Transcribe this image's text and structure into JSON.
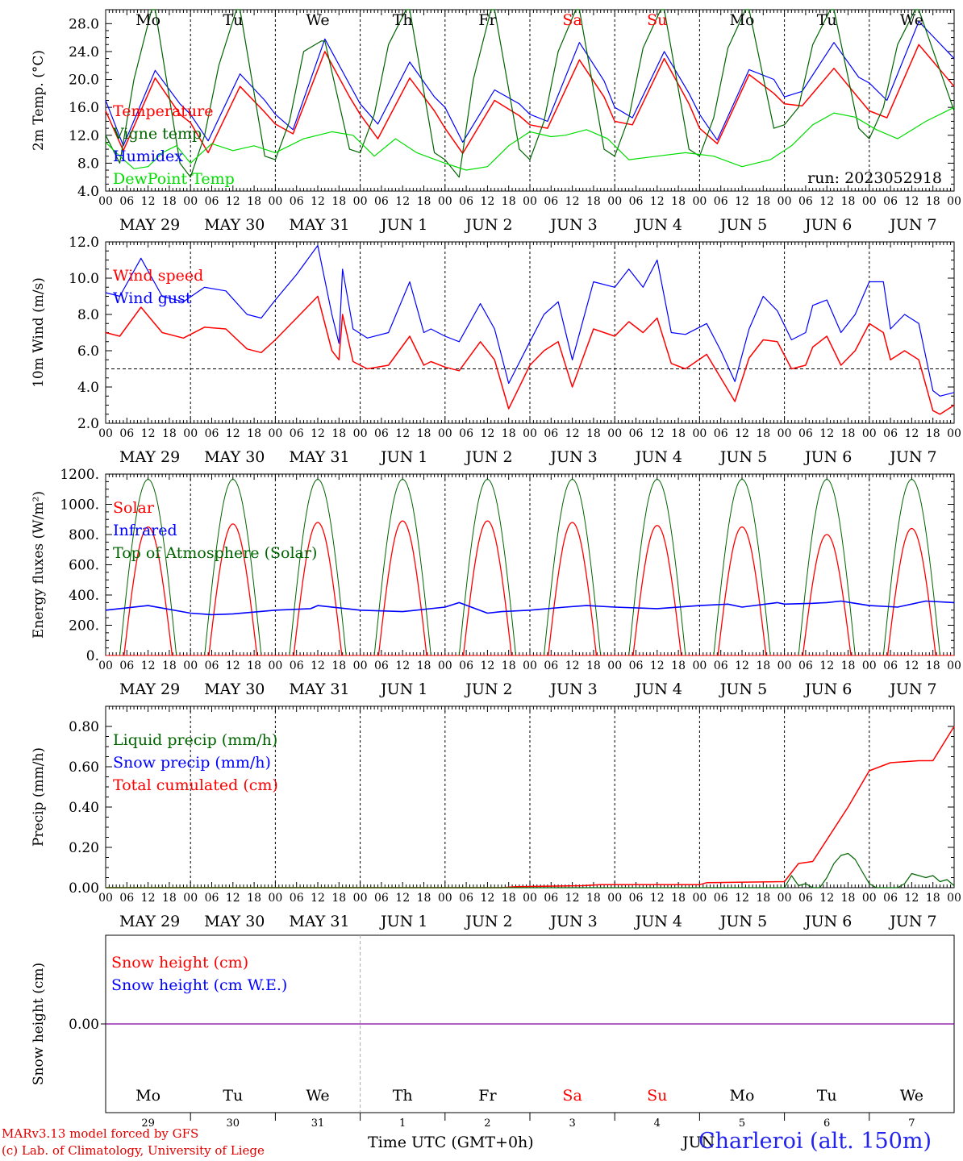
{
  "meta": {
    "run_label": "run: 2023052918",
    "credit_line1": "MARv3.13 model forced by GFS",
    "credit_line2": "(c) Lab. of Climatology, University of Liege",
    "time_axis_label": "Time UTC (GMT+0h)",
    "stray_month": "JUN",
    "station": "Charleroi (alt. 150m)"
  },
  "colors": {
    "red": "#ff0000",
    "blue": "#0000ff",
    "green": "#006400",
    "lightgreen": "#00dd00",
    "purple": "#8000a0",
    "weekend": "#ff0000"
  },
  "days": {
    "weekday_names": [
      "Mo",
      "Tu",
      "We",
      "Th",
      "Fr",
      "Sa",
      "Su",
      "Mo",
      "Tu",
      "We"
    ],
    "weekend_flags": [
      false,
      false,
      false,
      false,
      false,
      true,
      true,
      false,
      false,
      false
    ],
    "date_labels": [
      "MAY 29",
      "MAY 30",
      "MAY 31",
      "JUN  1",
      "JUN  2",
      "JUN  3",
      "JUN  4",
      "JUN  5",
      "JUN  6",
      "JUN  7"
    ],
    "day_numbers": [
      "29",
      "30",
      "31",
      "1",
      "2",
      "3",
      "4",
      "5",
      "6",
      "7"
    ],
    "hour_ticks": [
      "00",
      "06",
      "12",
      "18"
    ],
    "last_hour_tick": "00"
  },
  "chart_data": [
    {
      "id": "temperature",
      "type": "line",
      "ylabel": "2m Temp. (°C)",
      "ylim": [
        4,
        30
      ],
      "yticks": [
        "4.0",
        "8.0",
        "12.0",
        "16.0",
        "20.0",
        "24.0",
        "28.0"
      ],
      "legend": [
        "Temperature",
        "Vigne temp",
        "Humidex",
        "DewPoint Temp"
      ],
      "series": [
        {
          "name": "Temperature",
          "color": "red",
          "x": [
            0,
            5,
            14,
            21,
            24,
            29,
            38,
            45,
            48,
            53,
            62,
            69,
            72,
            77,
            86,
            93,
            96,
            101,
            110,
            117,
            120,
            125,
            134,
            141,
            144,
            149,
            158,
            165,
            168,
            173,
            182,
            189,
            192,
            197,
            206,
            213,
            216,
            221,
            230,
            240
          ],
          "y": [
            15.5,
            9.8,
            20.2,
            15.0,
            13.8,
            9.5,
            19.0,
            15.3,
            13.6,
            12.2,
            24.0,
            17.5,
            15.0,
            11.5,
            20.2,
            15.5,
            13.0,
            9.4,
            17.0,
            14.8,
            13.5,
            13.0,
            22.8,
            17.5,
            14.0,
            13.5,
            23.0,
            16.5,
            13.0,
            10.8,
            20.7,
            18.0,
            16.5,
            16.2,
            21.6,
            17.3,
            15.5,
            14.5,
            25.0,
            19.0
          ]
        },
        {
          "name": "Humidex",
          "color": "blue",
          "x": [
            0,
            5,
            14,
            21,
            24,
            29,
            38,
            45,
            48,
            53,
            62,
            69,
            72,
            77,
            86,
            93,
            96,
            101,
            110,
            117,
            120,
            125,
            134,
            141,
            144,
            149,
            158,
            165,
            168,
            173,
            182,
            189,
            192,
            197,
            206,
            213,
            216,
            221,
            230,
            240
          ],
          "y": [
            17.0,
            10.5,
            21.3,
            16.5,
            15.0,
            11.2,
            20.8,
            17.0,
            15.0,
            12.8,
            25.8,
            19.3,
            16.5,
            13.6,
            22.5,
            17.5,
            16.0,
            11.0,
            18.5,
            16.5,
            15.0,
            14.0,
            25.3,
            19.8,
            16.0,
            14.5,
            24.0,
            18.0,
            15.0,
            11.3,
            21.4,
            20.0,
            17.5,
            18.3,
            25.3,
            20.3,
            19.5,
            17.0,
            28.3,
            23.0
          ]
        },
        {
          "name": "Vigne temp",
          "color": "green",
          "x": [
            0,
            4,
            8,
            13,
            14,
            21,
            24,
            28,
            32,
            37,
            38,
            45,
            48,
            52,
            56,
            61,
            62,
            69,
            72,
            76,
            80,
            85,
            86,
            93,
            96,
            100,
            104,
            109,
            110,
            117,
            120,
            124,
            128,
            133,
            134,
            141,
            144,
            148,
            152,
            157,
            158,
            165,
            168,
            172,
            176,
            181,
            182,
            189,
            192,
            196,
            200,
            205,
            206,
            213,
            216,
            220,
            224,
            229,
            230,
            240
          ],
          "y": [
            12.0,
            8.0,
            20.0,
            30.0,
            30.0,
            8.0,
            6.0,
            12.0,
            22.0,
            30.0,
            30.0,
            9.0,
            8.5,
            14.0,
            24.0,
            25.5,
            25.5,
            10.0,
            9.5,
            15.0,
            25.0,
            30.0,
            30.0,
            9.5,
            8.5,
            6.0,
            20.0,
            30.0,
            30.0,
            10.0,
            8.5,
            14.0,
            24.0,
            30.0,
            30.0,
            10.0,
            9.0,
            14.5,
            24.5,
            30.0,
            30.0,
            10.0,
            9.0,
            14.5,
            24.5,
            30.0,
            30.0,
            13.0,
            13.5,
            16.0,
            25.0,
            30.0,
            30.0,
            13.0,
            11.5,
            16.0,
            25.0,
            30.0,
            30.0,
            15.5
          ]
        },
        {
          "name": "DewPoint Temp",
          "color": "lightgreen",
          "x": [
            0,
            4,
            8,
            12,
            16,
            20,
            24,
            30,
            36,
            42,
            48,
            56,
            64,
            70,
            76,
            82,
            88,
            96,
            102,
            108,
            114,
            120,
            126,
            130,
            136,
            142,
            148,
            156,
            164,
            172,
            180,
            188,
            194,
            200,
            206,
            212,
            218,
            224,
            232,
            240
          ],
          "y": [
            11.0,
            9.0,
            7.2,
            7.5,
            9.5,
            10.5,
            8.0,
            10.8,
            9.8,
            10.5,
            9.5,
            11.5,
            12.5,
            12.0,
            9.0,
            11.5,
            9.5,
            8.0,
            7.0,
            7.5,
            10.5,
            12.5,
            11.8,
            12.0,
            12.8,
            11.5,
            8.5,
            9.0,
            9.5,
            9.0,
            7.5,
            8.5,
            10.5,
            13.5,
            15.2,
            14.6,
            12.8,
            11.5,
            14.0,
            16.0
          ]
        }
      ]
    },
    {
      "id": "wind",
      "type": "line",
      "ylabel": "10m Wind (m/s)",
      "ylim": [
        2,
        12
      ],
      "yticks": [
        "2.0",
        "4.0",
        "6.0",
        "8.0",
        "10.0",
        "12.0"
      ],
      "reference_line": 5,
      "legend": [
        "Wind speed",
        "Wind gust"
      ],
      "series": [
        {
          "name": "Wind speed",
          "color": "red",
          "x": [
            0,
            4,
            10,
            16,
            22,
            28,
            34,
            40,
            44,
            48,
            54,
            60,
            64,
            66,
            67,
            70,
            74,
            80,
            86,
            90,
            92,
            96,
            100,
            106,
            110,
            114,
            120,
            124,
            128,
            132,
            138,
            144,
            148,
            152,
            156,
            160,
            164,
            170,
            174,
            178,
            182,
            186,
            190,
            194,
            198,
            200,
            204,
            208,
            212,
            216,
            220,
            222,
            226,
            230,
            234,
            236,
            240
          ],
          "y": [
            7.0,
            6.8,
            8.4,
            7.0,
            6.7,
            7.3,
            7.2,
            6.1,
            5.9,
            6.6,
            7.8,
            9.0,
            6.0,
            5.5,
            8.0,
            5.4,
            5.0,
            5.2,
            6.8,
            5.2,
            5.4,
            5.1,
            4.9,
            6.5,
            5.5,
            2.8,
            5.2,
            6.0,
            6.5,
            4.0,
            7.2,
            6.8,
            7.6,
            7.0,
            7.8,
            5.3,
            5.0,
            5.8,
            4.5,
            3.2,
            5.6,
            6.6,
            6.5,
            5.0,
            5.2,
            6.2,
            6.8,
            5.2,
            6.0,
            7.5,
            7.0,
            5.5,
            6.0,
            5.5,
            2.7,
            2.5,
            3.0
          ]
        },
        {
          "name": "Wind gust",
          "color": "blue",
          "x": [
            0,
            4,
            10,
            16,
            22,
            28,
            34,
            40,
            44,
            48,
            54,
            60,
            64,
            66,
            67,
            70,
            74,
            80,
            86,
            90,
            92,
            96,
            100,
            106,
            110,
            114,
            120,
            124,
            128,
            132,
            138,
            144,
            148,
            152,
            156,
            160,
            164,
            170,
            174,
            178,
            182,
            186,
            190,
            194,
            198,
            200,
            204,
            208,
            212,
            216,
            220,
            222,
            226,
            230,
            234,
            236,
            240
          ],
          "y": [
            9.2,
            9.0,
            11.1,
            9.0,
            8.7,
            9.5,
            9.3,
            8.0,
            7.8,
            8.8,
            10.2,
            11.8,
            8.0,
            6.4,
            10.5,
            7.2,
            6.7,
            7.0,
            9.8,
            7.0,
            7.2,
            6.8,
            6.5,
            8.6,
            7.2,
            4.2,
            6.5,
            8.0,
            8.7,
            5.5,
            9.8,
            9.5,
            10.5,
            9.5,
            11.0,
            7.0,
            6.9,
            7.5,
            6.0,
            4.3,
            7.2,
            9.0,
            8.2,
            6.6,
            7.0,
            8.5,
            8.8,
            7.0,
            8.0,
            9.8,
            9.8,
            7.2,
            8.0,
            7.5,
            3.8,
            3.5,
            3.7
          ]
        }
      ]
    },
    {
      "id": "energy",
      "type": "line",
      "ylabel": "Energy fluxes (W/m²)",
      "ylim": [
        0,
        1200
      ],
      "yticks": [
        "0.",
        "200.",
        "400.",
        "600.",
        "800.",
        "1000.",
        "1200."
      ],
      "legend": [
        "Solar",
        "Infrared",
        "Top of Atmosphere (Solar)"
      ],
      "diurnal": {
        "sunrise_hour": 4,
        "sunset_hour": 20,
        "toa_peak": 1165,
        "solar_peaks": [
          850,
          870,
          880,
          890,
          890,
          880,
          860,
          850,
          800,
          840
        ]
      },
      "series": [
        {
          "name": "Infrared",
          "color": "blue",
          "x": [
            0,
            12,
            24,
            30,
            36,
            48,
            58,
            60,
            72,
            84,
            96,
            100,
            108,
            112,
            120,
            130,
            136,
            144,
            156,
            168,
            176,
            180,
            190,
            192,
            200,
            204,
            208,
            212,
            216,
            224,
            232,
            240
          ],
          "y": [
            300,
            330,
            280,
            270,
            275,
            300,
            310,
            330,
            300,
            290,
            320,
            350,
            280,
            290,
            300,
            320,
            330,
            320,
            310,
            330,
            340,
            320,
            350,
            340,
            345,
            350,
            360,
            345,
            330,
            320,
            360,
            350
          ]
        }
      ]
    },
    {
      "id": "precip",
      "type": "line",
      "ylabel": "Precip (mm/h)",
      "ylim": [
        0,
        0.9
      ],
      "yticks": [
        "0.00",
        "0.20",
        "0.40",
        "0.60",
        "0.80"
      ],
      "legend": [
        "Liquid precip (mm/h)",
        "Snow precip (mm/h)",
        "Total cumulated (cm)"
      ],
      "series": [
        {
          "name": "Total cumulated (cm)",
          "color": "red",
          "x": [
            0,
            112,
            116,
            135,
            140,
            168,
            170,
            192,
            196,
            200,
            210,
            216,
            222,
            230,
            234,
            240
          ],
          "y": [
            0,
            0,
            0.005,
            0.01,
            0.015,
            0.015,
            0.025,
            0.03,
            0.12,
            0.13,
            0.4,
            0.58,
            0.62,
            0.63,
            0.63,
            0.8
          ]
        },
        {
          "name": "Liquid precip (mm/h)",
          "color": "green",
          "x": [
            0,
            192,
            194,
            196,
            198,
            200,
            202,
            204,
            206,
            208,
            210,
            212,
            214,
            216,
            218,
            220,
            222,
            224,
            226,
            228,
            230,
            232,
            234,
            236,
            238,
            240
          ],
          "y": [
            0,
            0,
            0.06,
            0.01,
            0.02,
            0,
            0,
            0.05,
            0.12,
            0.16,
            0.17,
            0.14,
            0.08,
            0.02,
            0,
            0,
            0,
            0,
            0.02,
            0.07,
            0.06,
            0.05,
            0.06,
            0.03,
            0.04,
            0.01
          ]
        }
      ]
    },
    {
      "id": "snow",
      "type": "line",
      "ylabel": "Snow height (cm)",
      "ylim": [
        -1,
        1
      ],
      "yticks": [
        "0.00"
      ],
      "legend": [
        "Snow height (cm)",
        "Snow height (cm W.E.)"
      ],
      "series": [
        {
          "name": "Snow height (cm)",
          "color": "purple",
          "x": [
            0,
            240
          ],
          "y": [
            0,
            0
          ]
        }
      ]
    }
  ]
}
